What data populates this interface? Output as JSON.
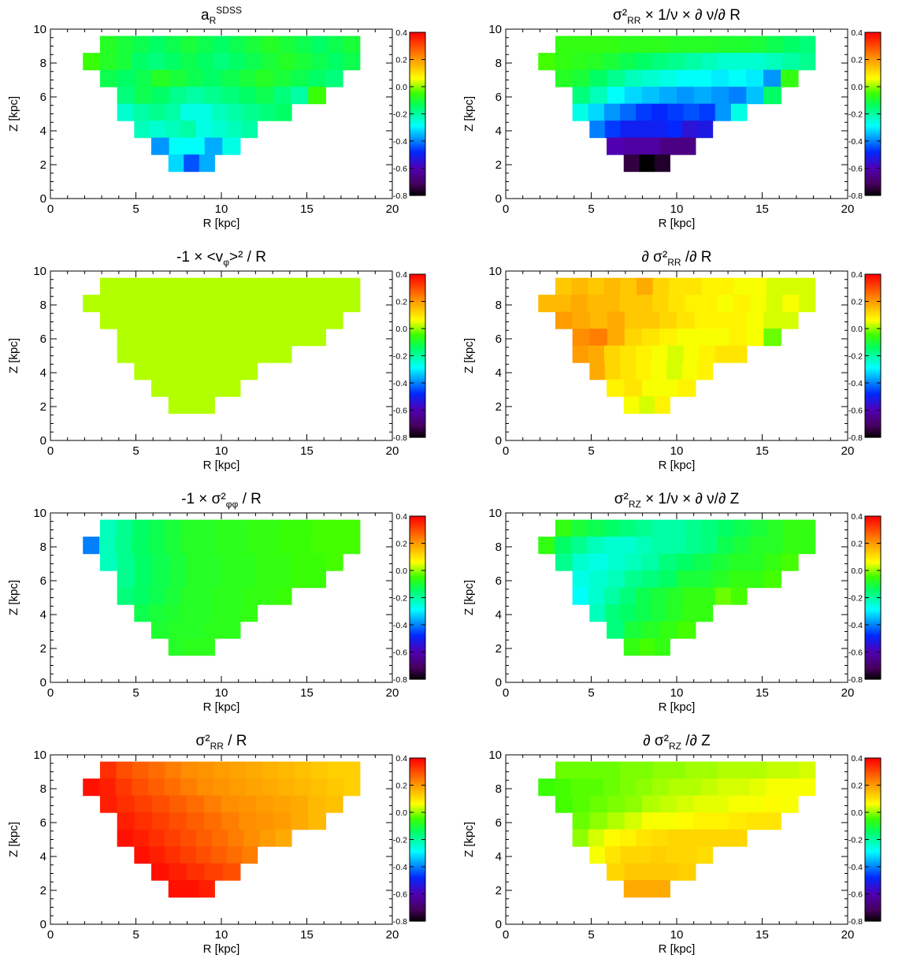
{
  "figure": {
    "panels": [
      {
        "title": "a_R^SDSS",
        "field": "aR"
      },
      {
        "title": "σ²_RR × 1/ν × ∂ ν/∂ R",
        "field": "dnuR"
      },
      {
        "title": "-1 × <v_φ>² / R",
        "field": "vphi"
      },
      {
        "title": "∂ σ²_RR /∂ R",
        "field": "dsigR"
      },
      {
        "title": "-1 × σ²_φφ / R",
        "field": "sigphi"
      },
      {
        "title": "σ²_RZ × 1/ν × ∂ ν/∂ Z",
        "field": "dnuZ"
      },
      {
        "title": "σ²_RR / R",
        "field": "sigR"
      },
      {
        "title": "∂ σ²_RZ /∂ Z",
        "field": "dsigZ"
      }
    ]
  },
  "chart_data": {
    "type": "heatmap",
    "xlabel": "R  [kpc]",
    "ylabel": "Z  [kpc]",
    "xlim": [
      0,
      20
    ],
    "ylim": [
      0,
      10
    ],
    "x_ticks": [
      "0",
      "5",
      "10",
      "15",
      "20"
    ],
    "y_ticks": [
      "0",
      "2",
      "4",
      "6",
      "8",
      "10"
    ],
    "colorbar": {
      "range": [
        -0.8,
        0.4
      ],
      "ticks": [
        "0.4",
        "0.2",
        "0.0",
        "-0.2",
        "-0.4",
        "-0.6",
        "-0.8"
      ],
      "colormap": "rainbow (black-purple-blue-cyan-green-yellow-orange-red)"
    },
    "bin_rows": [
      {
        "z": 8.6,
        "r_start": 2.9,
        "r_end": 18.1
      },
      {
        "z": 7.6,
        "r_start": 1.9,
        "r_end": 18.1
      },
      {
        "z": 6.6,
        "r_start": 2.9,
        "r_end": 17.1
      },
      {
        "z": 5.6,
        "r_start": 3.9,
        "r_end": 16.1
      },
      {
        "z": 4.6,
        "r_start": 3.9,
        "r_end": 14.1
      },
      {
        "z": 3.6,
        "r_start": 4.9,
        "r_end": 12.1
      },
      {
        "z": 2.6,
        "r_start": 5.9,
        "r_end": 11.1
      },
      {
        "z": 1.6,
        "r_start": 6.9,
        "r_end": 9.6
      }
    ],
    "panels": [
      {
        "title": "a_R^SDSS",
        "values_by_row": [
          [
            -0.08,
            -0.1,
            -0.12,
            -0.14,
            -0.12,
            -0.1,
            -0.12,
            -0.14,
            -0.12,
            -0.1,
            -0.08,
            -0.1,
            -0.12,
            -0.14,
            -0.12,
            -0.1
          ],
          [
            -0.05,
            -0.08,
            -0.1,
            -0.14,
            -0.16,
            -0.14,
            -0.12,
            -0.14,
            -0.16,
            -0.14,
            -0.12,
            -0.1,
            -0.08,
            -0.1,
            -0.12,
            -0.14,
            -0.12
          ],
          [
            -0.12,
            -0.14,
            -0.12,
            -0.08,
            -0.1,
            -0.12,
            -0.14,
            -0.12,
            -0.1,
            -0.08,
            -0.1,
            -0.12,
            -0.14,
            -0.16
          ],
          [
            -0.16,
            -0.12,
            -0.14,
            -0.18,
            -0.2,
            -0.18,
            -0.16,
            -0.14,
            -0.12,
            -0.16,
            -0.2,
            -0.05
          ],
          [
            -0.24,
            -0.2,
            -0.18,
            -0.2,
            -0.26,
            -0.26,
            -0.22,
            -0.2,
            -0.18,
            -0.16,
            -0.14
          ],
          [
            -0.22,
            -0.24,
            -0.22,
            -0.2,
            -0.26,
            -0.24,
            -0.22,
            -0.2
          ],
          [
            -0.38,
            -0.28,
            -0.28,
            -0.36,
            -0.26
          ],
          [
            -0.32,
            -0.44,
            -0.36
          ]
        ]
      },
      {
        "title": "σ²_RR × 1/ν × ∂ ν/∂ R",
        "values_by_row": [
          [
            -0.06,
            -0.06,
            -0.06,
            -0.06,
            -0.07,
            -0.07,
            -0.07,
            -0.08,
            -0.08,
            -0.08,
            -0.09,
            -0.09,
            -0.1,
            -0.12,
            -0.14,
            -0.16
          ],
          [
            -0.04,
            -0.06,
            -0.07,
            -0.08,
            -0.1,
            -0.12,
            -0.14,
            -0.16,
            -0.18,
            -0.2,
            -0.22,
            -0.24,
            -0.24,
            -0.24,
            -0.22,
            -0.2,
            -0.18
          ],
          [
            -0.08,
            -0.1,
            -0.14,
            -0.18,
            -0.22,
            -0.24,
            -0.26,
            -0.28,
            -0.28,
            -0.3,
            -0.28,
            -0.3,
            -0.38,
            -0.06
          ],
          [
            -0.16,
            -0.22,
            -0.28,
            -0.32,
            -0.34,
            -0.36,
            -0.38,
            -0.36,
            -0.38,
            -0.4,
            -0.34,
            -0.14
          ],
          [
            -0.26,
            -0.32,
            -0.38,
            -0.42,
            -0.46,
            -0.48,
            -0.46,
            -0.44,
            -0.46,
            -0.38,
            -0.26
          ],
          [
            -0.4,
            -0.46,
            -0.5,
            -0.5,
            -0.5,
            -0.48,
            -0.54,
            -0.52
          ],
          [
            -0.6,
            -0.62,
            -0.62,
            -0.66,
            -0.66
          ],
          [
            -0.74,
            -0.8,
            -0.76
          ]
        ]
      },
      {
        "title": "-1 × <v_φ>² / R",
        "values_by_row": [
          [
            0.02,
            0.02,
            0.02,
            0.02,
            0.02,
            0.02,
            0.02,
            0.02,
            0.02,
            0.02,
            0.02,
            0.02,
            0.02,
            0.02,
            0.02,
            0.02
          ],
          [
            0.02,
            0.02,
            0.02,
            0.02,
            0.02,
            0.02,
            0.02,
            0.02,
            0.02,
            0.02,
            0.02,
            0.02,
            0.02,
            0.02,
            0.02,
            0.02,
            0.02
          ],
          [
            0.02,
            0.02,
            0.02,
            0.02,
            0.02,
            0.02,
            0.02,
            0.02,
            0.02,
            0.02,
            0.02,
            0.02,
            0.02,
            0.02
          ],
          [
            0.02,
            0.02,
            0.02,
            0.02,
            0.02,
            0.02,
            0.02,
            0.02,
            0.02,
            0.02,
            0.02,
            0.02
          ],
          [
            0.02,
            0.02,
            0.02,
            0.02,
            0.02,
            0.02,
            0.02,
            0.02,
            0.02,
            0.02,
            0.02
          ],
          [
            0.02,
            0.02,
            0.02,
            0.02,
            0.02,
            0.02,
            0.02,
            0.02
          ],
          [
            0.02,
            0.02,
            0.02,
            0.02,
            0.02
          ],
          [
            0.02,
            0.02,
            0.02
          ]
        ]
      },
      {
        "title": "∂ σ²_RR /∂ R",
        "values_by_row": [
          [
            0.14,
            0.16,
            0.14,
            0.16,
            0.14,
            0.18,
            0.12,
            0.1,
            0.1,
            0.08,
            0.08,
            0.06,
            0.06,
            0.04,
            0.04,
            0.04
          ],
          [
            0.16,
            0.16,
            0.18,
            0.16,
            0.16,
            0.14,
            0.14,
            0.12,
            0.1,
            0.08,
            0.08,
            0.06,
            0.08,
            0.06,
            0.04,
            0.06,
            0.04
          ],
          [
            0.2,
            0.18,
            0.16,
            0.18,
            0.14,
            0.14,
            0.12,
            0.1,
            0.08,
            0.08,
            0.08,
            0.06,
            0.04,
            0.04
          ],
          [
            0.22,
            0.24,
            0.18,
            0.12,
            0.1,
            0.08,
            0.06,
            0.06,
            0.06,
            0.08,
            0.06,
            -0.02
          ],
          [
            0.2,
            0.18,
            0.12,
            0.1,
            0.08,
            0.06,
            0.04,
            0.06,
            0.08,
            0.1,
            0.1
          ],
          [
            0.18,
            0.12,
            0.1,
            0.08,
            0.06,
            0.04,
            0.06,
            0.08
          ],
          [
            0.08,
            0.1,
            0.06,
            0.06,
            0.08
          ],
          [
            0.06,
            0.04,
            0.08
          ]
        ]
      },
      {
        "title": "-1 × σ²_φφ / R",
        "values_by_row": [
          [
            -0.22,
            -0.18,
            -0.14,
            -0.12,
            -0.1,
            -0.08,
            -0.08,
            -0.07,
            -0.07,
            -0.06,
            -0.06,
            -0.05,
            -0.05,
            -0.04,
            -0.04,
            -0.04
          ],
          [
            -0.4,
            -0.22,
            -0.18,
            -0.14,
            -0.12,
            -0.1,
            -0.08,
            -0.08,
            -0.07,
            -0.07,
            -0.06,
            -0.06,
            -0.05,
            -0.05,
            -0.04,
            -0.04,
            -0.04
          ],
          [
            -0.22,
            -0.18,
            -0.14,
            -0.12,
            -0.1,
            -0.08,
            -0.08,
            -0.07,
            -0.07,
            -0.06,
            -0.06,
            -0.05,
            -0.05,
            -0.04
          ],
          [
            -0.18,
            -0.14,
            -0.12,
            -0.1,
            -0.08,
            -0.08,
            -0.07,
            -0.07,
            -0.06,
            -0.06,
            -0.05,
            -0.05
          ],
          [
            -0.16,
            -0.14,
            -0.12,
            -0.1,
            -0.08,
            -0.08,
            -0.07,
            -0.07,
            -0.06,
            -0.06,
            -0.05
          ],
          [
            -0.12,
            -0.1,
            -0.09,
            -0.08,
            -0.08,
            -0.07,
            -0.07,
            -0.06
          ],
          [
            -0.09,
            -0.08,
            -0.08,
            -0.07,
            -0.07
          ],
          [
            -0.08,
            -0.07,
            -0.07
          ]
        ]
      },
      {
        "title": "σ²_RZ × 1/ν × ∂ ν/∂ Z",
        "values_by_row": [
          [
            -0.06,
            -0.1,
            -0.12,
            -0.14,
            -0.16,
            -0.18,
            -0.2,
            -0.2,
            -0.18,
            -0.16,
            -0.14,
            -0.12,
            -0.1,
            -0.08,
            -0.06,
            -0.06
          ],
          [
            -0.06,
            -0.14,
            -0.18,
            -0.22,
            -0.24,
            -0.24,
            -0.22,
            -0.2,
            -0.2,
            -0.18,
            -0.16,
            -0.12,
            -0.1,
            -0.08,
            -0.08,
            -0.06,
            -0.06
          ],
          [
            -0.18,
            -0.24,
            -0.26,
            -0.24,
            -0.22,
            -0.2,
            -0.16,
            -0.14,
            -0.12,
            -0.1,
            -0.08,
            -0.08,
            -0.06,
            -0.04
          ],
          [
            -0.26,
            -0.24,
            -0.22,
            -0.18,
            -0.16,
            -0.14,
            -0.1,
            -0.1,
            -0.08,
            -0.06,
            -0.06,
            -0.04
          ],
          [
            -0.28,
            -0.24,
            -0.2,
            -0.16,
            -0.12,
            -0.1,
            -0.08,
            -0.06,
            -0.06,
            -0.02,
            -0.04
          ],
          [
            -0.22,
            -0.16,
            -0.14,
            -0.12,
            -0.1,
            -0.08,
            -0.06,
            -0.06
          ],
          [
            -0.16,
            -0.1,
            -0.08,
            -0.06,
            -0.04
          ],
          [
            -0.06,
            -0.04,
            -0.06
          ]
        ]
      },
      {
        "title": "σ²_RR / R",
        "values_by_row": [
          [
            0.34,
            0.3,
            0.28,
            0.26,
            0.24,
            0.22,
            0.21,
            0.2,
            0.19,
            0.18,
            0.17,
            0.16,
            0.15,
            0.14,
            0.13,
            0.13
          ],
          [
            0.38,
            0.36,
            0.33,
            0.3,
            0.28,
            0.26,
            0.24,
            0.22,
            0.21,
            0.2,
            0.19,
            0.18,
            0.17,
            0.16,
            0.15,
            0.14,
            0.13
          ],
          [
            0.36,
            0.34,
            0.32,
            0.3,
            0.28,
            0.26,
            0.24,
            0.22,
            0.21,
            0.2,
            0.19,
            0.18,
            0.16,
            0.15
          ],
          [
            0.36,
            0.34,
            0.32,
            0.3,
            0.28,
            0.26,
            0.24,
            0.22,
            0.21,
            0.2,
            0.18,
            0.16
          ],
          [
            0.38,
            0.36,
            0.34,
            0.32,
            0.3,
            0.28,
            0.26,
            0.24,
            0.22,
            0.2,
            0.18
          ],
          [
            0.38,
            0.36,
            0.34,
            0.32,
            0.3,
            0.28,
            0.26,
            0.24
          ],
          [
            0.38,
            0.36,
            0.34,
            0.32,
            0.3
          ],
          [
            0.38,
            0.38,
            0.36
          ]
        ]
      },
      {
        "title": "∂ σ²_RZ /∂ Z",
        "values_by_row": [
          [
            -0.02,
            -0.02,
            -0.02,
            -0.02,
            -0.01,
            -0.01,
            0.0,
            0.0,
            0.01,
            0.01,
            0.02,
            0.02,
            0.02,
            0.03,
            0.03,
            0.04
          ],
          [
            -0.05,
            -0.04,
            -0.03,
            -0.03,
            -0.02,
            -0.01,
            0.0,
            0.01,
            0.02,
            0.02,
            0.03,
            0.04,
            0.04,
            0.05,
            0.06,
            0.06,
            0.06
          ],
          [
            -0.04,
            -0.03,
            -0.02,
            -0.01,
            0.0,
            0.02,
            0.03,
            0.04,
            0.05,
            0.05,
            0.06,
            0.06,
            0.07,
            0.06
          ],
          [
            -0.02,
            0.0,
            0.02,
            0.04,
            0.06,
            0.06,
            0.07,
            0.08,
            0.08,
            0.09,
            0.1,
            0.1
          ],
          [
            0.0,
            0.04,
            0.07,
            0.08,
            0.1,
            0.11,
            0.12,
            0.12,
            0.12,
            0.12,
            0.12
          ],
          [
            0.06,
            0.1,
            0.12,
            0.12,
            0.13,
            0.12,
            0.12,
            0.11
          ],
          [
            0.12,
            0.14,
            0.14,
            0.14,
            0.13
          ],
          [
            0.18,
            0.18,
            0.18
          ]
        ]
      }
    ]
  }
}
